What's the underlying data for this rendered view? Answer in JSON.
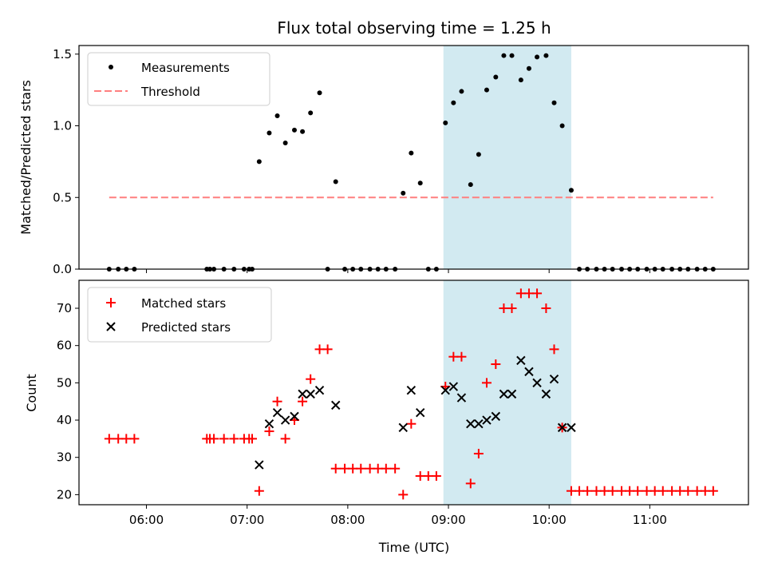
{
  "title": "Flux total observing time = 1.25 h",
  "xlabel": "Time (UTC)",
  "x_tick_labels": [
    "06:00",
    "07:00",
    "08:00",
    "09:00",
    "10:00",
    "11:00"
  ],
  "x_tick_values": [
    6,
    7,
    8,
    9,
    10,
    11
  ],
  "xlim": [
    5.33,
    11.98
  ],
  "shaded_span": {
    "from": 8.95,
    "to": 10.22,
    "color": "#add8e6"
  },
  "chart_data": [
    {
      "type": "scatter",
      "ylabel": "Matched/Predicted stars",
      "ylim": [
        0,
        1.56
      ],
      "y_ticks": [
        0,
        0.5,
        1.0,
        1.5
      ],
      "y_tick_labels": [
        "0.0",
        "0.5",
        "1.0",
        "1.5"
      ],
      "legend_position": "upper-left",
      "series": [
        {
          "name": "Measurements",
          "marker": "dot",
          "color": "#000000",
          "x": [
            5.63,
            5.72,
            5.8,
            5.88,
            6.6,
            6.63,
            6.67,
            6.77,
            6.87,
            6.97,
            7.02,
            7.05,
            7.12,
            7.22,
            7.3,
            7.38,
            7.47,
            7.55,
            7.63,
            7.72,
            7.8,
            7.88,
            7.97,
            8.05,
            8.13,
            8.22,
            8.3,
            8.38,
            8.47,
            8.55,
            8.63,
            8.72,
            8.8,
            8.88,
            8.97,
            9.05,
            9.13,
            9.22,
            9.3,
            9.38,
            9.47,
            9.55,
            9.63,
            9.72,
            9.8,
            9.88,
            9.97,
            10.05,
            10.13,
            10.22,
            10.3,
            10.38,
            10.47,
            10.55,
            10.63,
            10.72,
            10.8,
            10.88,
            10.97,
            11.05,
            11.13,
            11.22,
            11.3,
            11.38,
            11.47,
            11.55,
            11.63
          ],
          "y": [
            0,
            0,
            0,
            0,
            0,
            0,
            0,
            0,
            0,
            0,
            0,
            0,
            0.75,
            0.95,
            1.07,
            0.88,
            0.97,
            0.96,
            1.09,
            1.23,
            0,
            0.61,
            0,
            0,
            0,
            0,
            0,
            0,
            0,
            0.53,
            0.81,
            0.6,
            0,
            0,
            1.02,
            1.16,
            1.24,
            0.59,
            0.8,
            1.25,
            1.34,
            1.49,
            1.49,
            1.32,
            1.4,
            1.48,
            1.49,
            1.16,
            1.0,
            0.55,
            0,
            0,
            0,
            0,
            0,
            0,
            0,
            0,
            0,
            0,
            0,
            0,
            0,
            0,
            0,
            0,
            0
          ]
        },
        {
          "name": "Threshold",
          "marker": "dashed-line",
          "color": "#ff7f7f",
          "x": [
            5.63,
            11.63
          ],
          "y": [
            0.5,
            0.5
          ]
        }
      ]
    },
    {
      "type": "scatter",
      "ylabel": "Count",
      "ylim": [
        17.3,
        77.5
      ],
      "y_ticks": [
        20,
        30,
        40,
        50,
        60,
        70
      ],
      "y_tick_labels": [
        "20",
        "30",
        "40",
        "50",
        "60",
        "70"
      ],
      "legend_position": "upper-left",
      "series": [
        {
          "name": "Matched stars",
          "marker": "plus",
          "color": "#ff0000",
          "x": [
            5.63,
            5.72,
            5.8,
            5.88,
            6.6,
            6.63,
            6.67,
            6.77,
            6.87,
            6.97,
            7.02,
            7.05,
            7.12,
            7.22,
            7.3,
            7.38,
            7.47,
            7.55,
            7.63,
            7.72,
            7.8,
            7.88,
            7.97,
            8.05,
            8.13,
            8.22,
            8.3,
            8.38,
            8.47,
            8.55,
            8.63,
            8.72,
            8.8,
            8.88,
            8.97,
            9.05,
            9.13,
            9.22,
            9.3,
            9.38,
            9.47,
            9.55,
            9.63,
            9.72,
            9.8,
            9.88,
            9.97,
            10.05,
            10.13,
            10.22,
            10.3,
            10.38,
            10.47,
            10.55,
            10.63,
            10.72,
            10.8,
            10.88,
            10.97,
            11.05,
            11.13,
            11.22,
            11.3,
            11.38,
            11.47,
            11.55,
            11.63
          ],
          "y": [
            35,
            35,
            35,
            35,
            35,
            35,
            35,
            35,
            35,
            35,
            35,
            35,
            21,
            37,
            45,
            35,
            40,
            45,
            51,
            59,
            59,
            27,
            27,
            27,
            27,
            27,
            27,
            27,
            27,
            20,
            39,
            25,
            25,
            25,
            49,
            57,
            57,
            23,
            31,
            50,
            55,
            70,
            70,
            74,
            74,
            74,
            70,
            59,
            38,
            21,
            21,
            21,
            21,
            21,
            21,
            21,
            21,
            21,
            21,
            21,
            21,
            21,
            21,
            21,
            21,
            21,
            21
          ]
        },
        {
          "name": "Predicted stars",
          "marker": "x",
          "color": "#000000",
          "x": [
            7.12,
            7.22,
            7.3,
            7.38,
            7.47,
            7.55,
            7.63,
            7.72,
            7.88,
            8.55,
            8.63,
            8.72,
            8.97,
            9.05,
            9.13,
            9.22,
            9.3,
            9.38,
            9.47,
            9.55,
            9.63,
            9.72,
            9.8,
            9.88,
            9.97,
            10.05,
            10.13,
            10.22
          ],
          "y": [
            28,
            39,
            42,
            40,
            41,
            47,
            47,
            48,
            44,
            38,
            48,
            42,
            48,
            49,
            46,
            39,
            39,
            40,
            41,
            47,
            47,
            56,
            53,
            50,
            47,
            51,
            38,
            38
          ]
        }
      ]
    }
  ]
}
